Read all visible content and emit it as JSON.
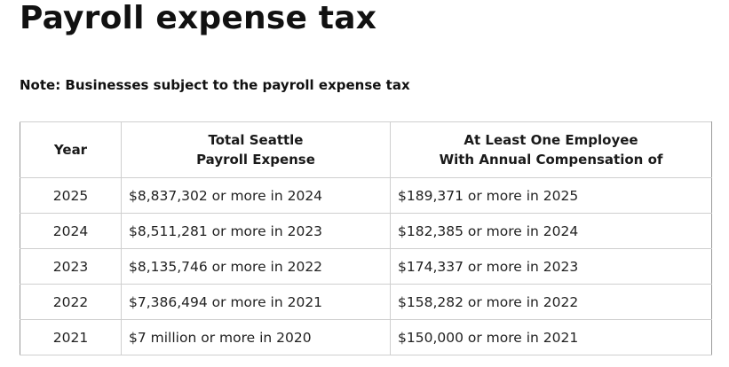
{
  "page": {
    "title": "Payroll expense tax",
    "note": "Note: Businesses subject to the payroll expense tax"
  },
  "table": {
    "headers": {
      "year": "Year",
      "expense_line1": "Total Seattle",
      "expense_line2": "Payroll Expense",
      "comp_line1": "At Least One Employee",
      "comp_line2": "With Annual Compensation of"
    },
    "rows": [
      {
        "year": "2025",
        "expense": "$8,837,302 or more in 2024",
        "comp": "$189,371 or more in 2025"
      },
      {
        "year": "2024",
        "expense": "$8,511,281 or more in 2023",
        "comp": "$182,385 or more in 2024"
      },
      {
        "year": "2023",
        "expense": "$8,135,746 or more in 2022",
        "comp": "$174,337 or more in 2023"
      },
      {
        "year": "2022",
        "expense": "$7,386,494 or more in 2021",
        "comp": "$158,282 or more in 2022"
      },
      {
        "year": "2021",
        "expense": "$7 million or more in 2020",
        "comp": "$150,000 or more in 2021"
      }
    ]
  }
}
